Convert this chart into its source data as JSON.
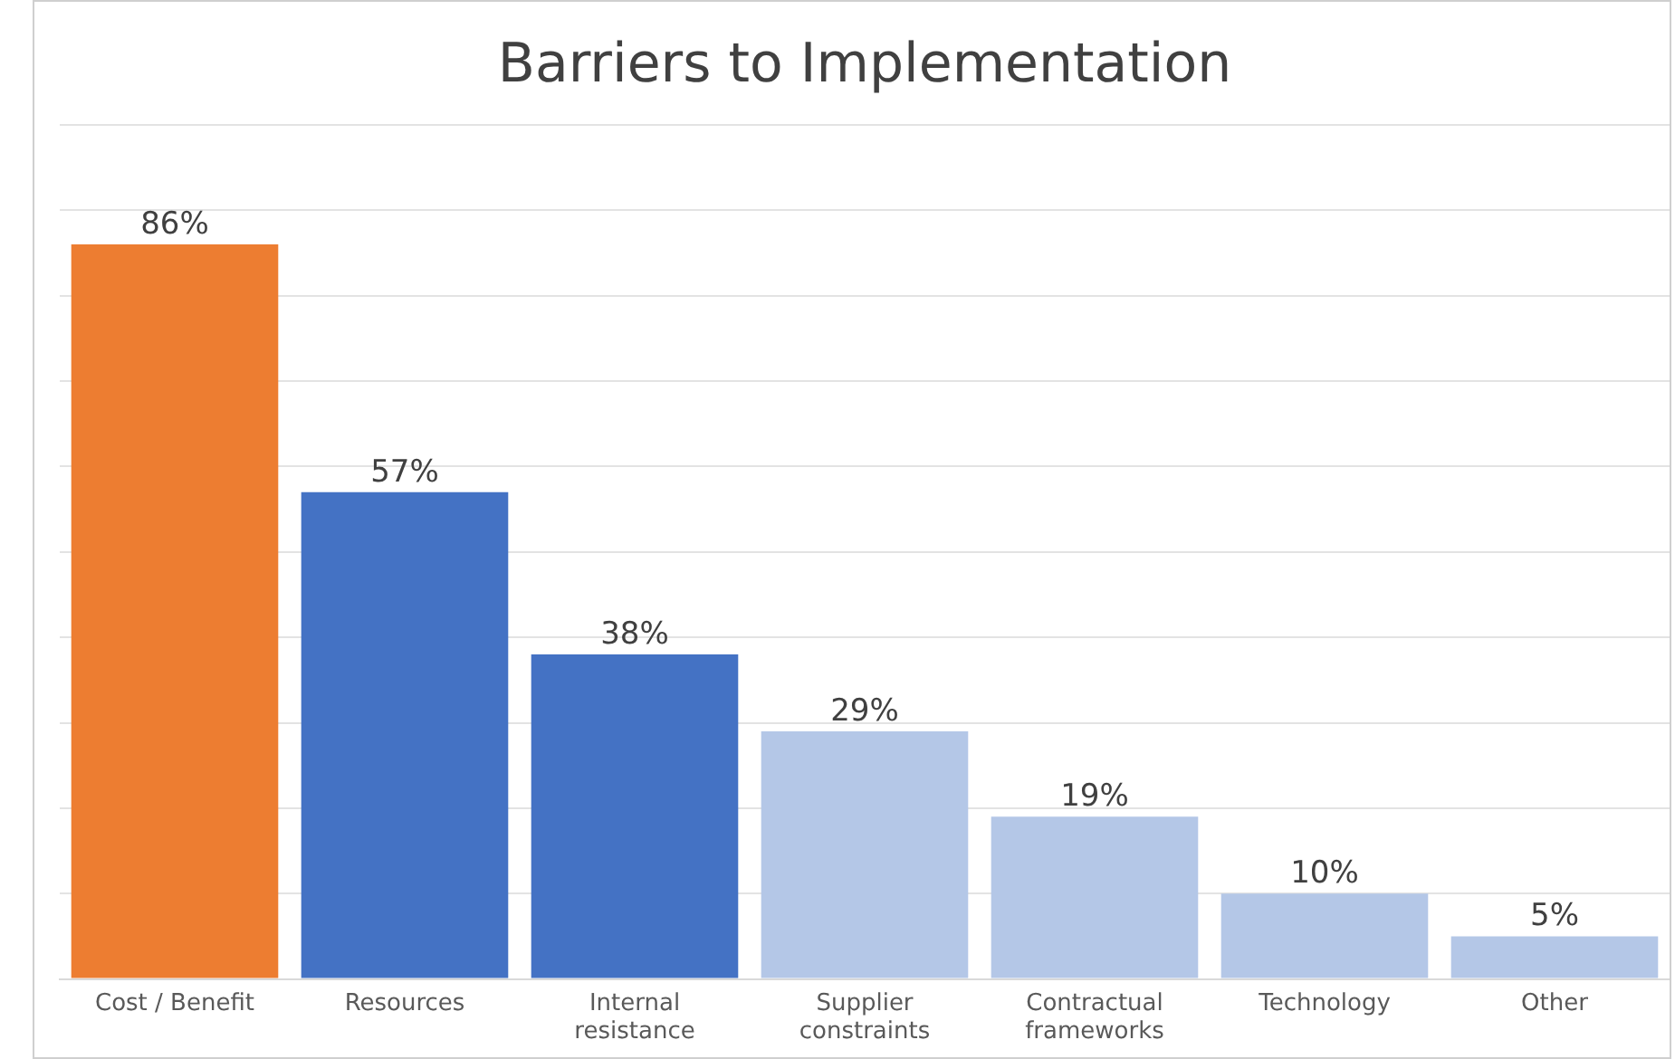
{
  "chart_data": {
    "type": "bar",
    "title": "Barriers to Implementation",
    "categories": [
      "Cost / Benefit",
      "Resources",
      "Internal resistance",
      "Supplier constraints",
      "Contractual frameworks",
      "Technology",
      "Other"
    ],
    "values": [
      86,
      57,
      38,
      29,
      19,
      10,
      5
    ],
    "colors": [
      "#ed7d31",
      "#4472c4",
      "#4472c4",
      "#b4c7e7",
      "#b4c7e7",
      "#b4c7e7",
      "#b4c7e7"
    ],
    "value_labels": [
      "86%",
      "57%",
      "38%",
      "29%",
      "19%",
      "10%",
      "5%"
    ],
    "ylim": [
      0,
      100
    ],
    "yticks": [
      {
        "value": 0,
        "label": null
      },
      {
        "value": 10,
        "label": null
      },
      {
        "value": 20,
        "label": null
      },
      {
        "value": 30,
        "label": null
      },
      {
        "value": 40,
        "label": null
      },
      {
        "value": 50,
        "label": null
      },
      {
        "value": 60,
        "label": null
      },
      {
        "value": 70,
        "label": null
      },
      {
        "value": 80,
        "label": null
      },
      {
        "value": 90,
        "label": null
      },
      {
        "value": 100,
        "label": null
      }
    ],
    "tick_labels": "x",
    "grid": "y",
    "legend": false
  }
}
